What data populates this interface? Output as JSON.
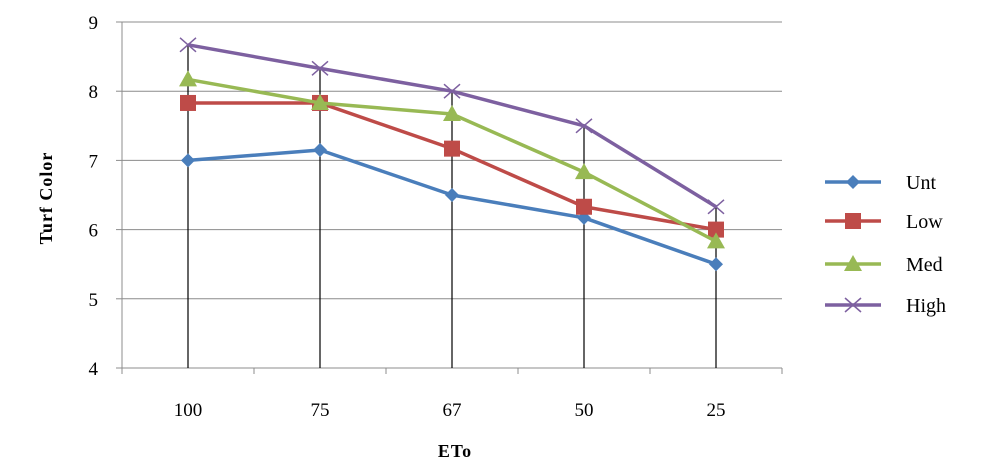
{
  "chart_data": {
    "type": "line",
    "xlabel": "ETo",
    "ylabel": "Turf Color",
    "categories": [
      "100",
      "75",
      "67",
      "50",
      "25"
    ],
    "ylim": [
      4,
      9
    ],
    "yticks": [
      "4",
      "5",
      "6",
      "7",
      "8",
      "9"
    ],
    "grid": "horizontal",
    "legend_position": "right",
    "series": [
      {
        "name": "Unt",
        "color": "#4a7ebb",
        "marker": "diamond",
        "values": [
          7.0,
          7.15,
          6.5,
          6.17,
          5.5
        ]
      },
      {
        "name": "Low",
        "color": "#be4b48",
        "marker": "square",
        "values": [
          7.83,
          7.83,
          7.17,
          6.33,
          6.0
        ]
      },
      {
        "name": "Med",
        "color": "#98b954",
        "marker": "triangle",
        "values": [
          8.17,
          7.83,
          7.67,
          6.83,
          5.83
        ]
      },
      {
        "name": "High",
        "color": "#7d60a0",
        "marker": "cross",
        "values": [
          8.67,
          8.33,
          8.0,
          7.5,
          6.33
        ]
      }
    ]
  }
}
